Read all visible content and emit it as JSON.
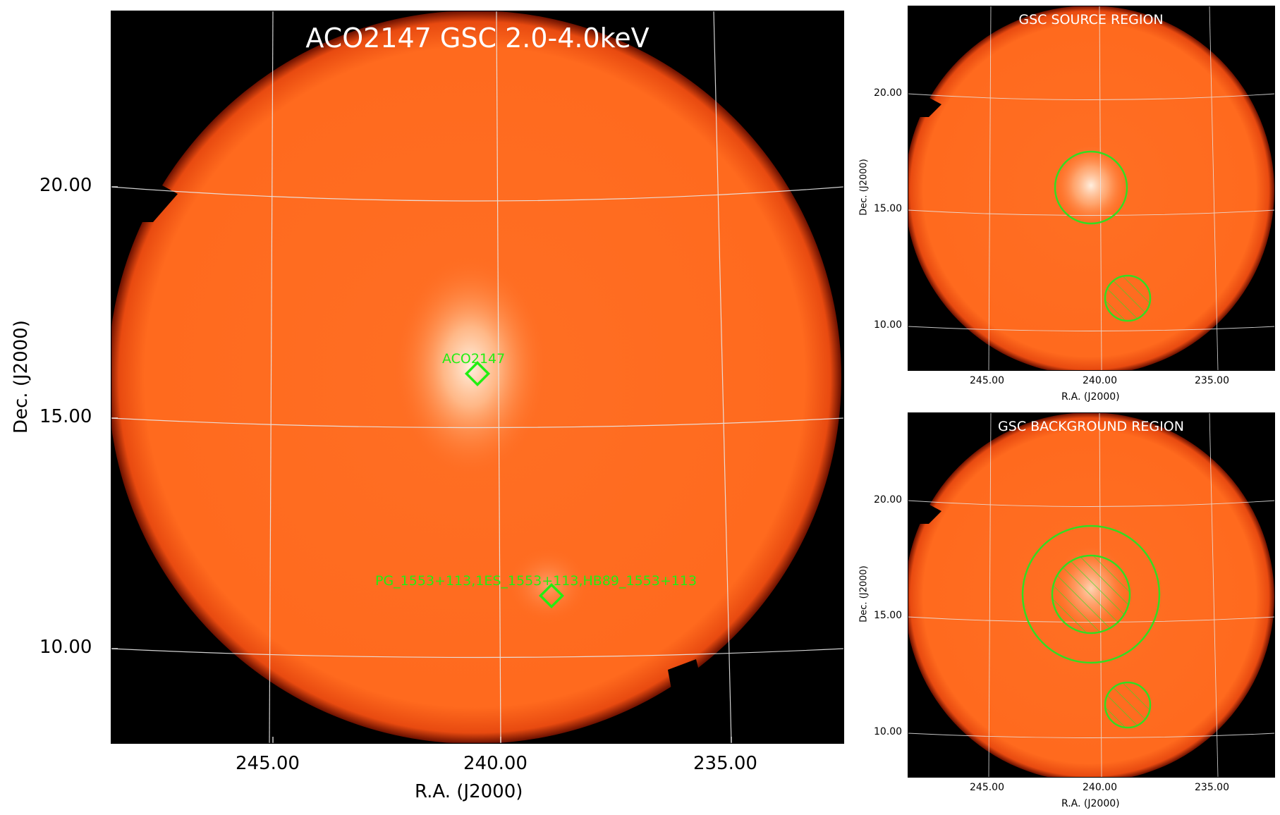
{
  "main": {
    "title": "ACO2147 GSC 2.0-4.0keV",
    "xlabel": "R.A. (J2000)",
    "ylabel": "Dec. (J2000)",
    "xticks": [
      "245.00",
      "240.00",
      "235.00"
    ],
    "yticks": [
      "20.00",
      "15.00",
      "10.00"
    ],
    "sources": [
      {
        "label": "ACO2147"
      },
      {
        "label": "PG_1553+113,1ES_1553+113,HB89_1553+113"
      }
    ]
  },
  "source_panel": {
    "title": "GSC SOURCE REGION",
    "xlabel": "R.A. (J2000)",
    "ylabel": "Dec. (J2000)",
    "xticks": [
      "245.00",
      "240.00",
      "235.00"
    ],
    "yticks": [
      "20.00",
      "15.00",
      "10.00"
    ]
  },
  "background_panel": {
    "title": "GSC BACKGROUND REGION",
    "xlabel": "R.A. (J2000)",
    "ylabel": "Dec. (J2000)",
    "xticks": [
      "245.00",
      "240.00",
      "235.00"
    ],
    "yticks": [
      "20.00",
      "15.00",
      "10.00"
    ]
  },
  "colors": {
    "field": "#ff6b1f",
    "field_edge": "#b02000",
    "background": "#000000",
    "region": "#33dd22",
    "grid": "#e8e8e8",
    "title_text": "#ffffff"
  }
}
